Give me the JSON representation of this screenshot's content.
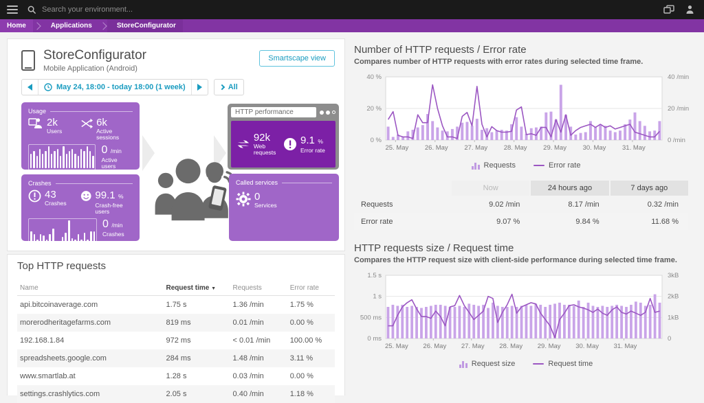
{
  "topbar": {
    "search_placeholder": "Search your environment..."
  },
  "breadcrumb": {
    "items": [
      "Home",
      "Applications",
      "StoreConfigurator"
    ]
  },
  "app": {
    "title": "StoreConfigurator",
    "subtitle": "Mobile Application (Android)",
    "smartscape_button": "Smartscape view",
    "timeframe": "May 24, 18:00 - today 18:00 (1 week)",
    "all_button": "All"
  },
  "infographic": {
    "usage": {
      "title": "Usage",
      "users_value": "2k",
      "users_label": "Users",
      "sessions_value": "6k",
      "sessions_label": "Active sessions",
      "rate_value": "0",
      "rate_unit": "/min",
      "rate_label": "Active users",
      "bars": [
        6,
        7,
        5,
        8,
        6,
        7,
        9,
        6,
        7,
        8,
        5,
        9,
        6,
        7,
        8,
        6,
        5,
        8,
        7,
        9,
        7,
        5
      ]
    },
    "crashes": {
      "title": "Crashes",
      "count_value": "43",
      "count_label": "Crashes",
      "free_value": "99.1",
      "free_unit": "%",
      "free_label": "Crash-free users",
      "rate_value": "0",
      "rate_unit": "/min",
      "rate_label": "Crashes",
      "bars": [
        4,
        3,
        1,
        3,
        2.5,
        1,
        3,
        5,
        0,
        0,
        2,
        3.5,
        8,
        1.5,
        1,
        3,
        1,
        3.5,
        1,
        4,
        4
      ]
    },
    "http_performance": {
      "window_title": "HTTP performance",
      "requests_value": "92k",
      "requests_label": "Web requests",
      "error_value": "9.1",
      "error_unit": "%",
      "error_label": "Error rate"
    },
    "called_services": {
      "title": "Called services",
      "value": "0",
      "label": "Services"
    }
  },
  "comparison": {
    "columns": [
      "Now",
      "24 hours ago",
      "7 days ago"
    ],
    "rows": [
      {
        "label": "Requests",
        "values": [
          "9.02 /min",
          "8.17 /min",
          "0.32 /min"
        ]
      },
      {
        "label": "Error rate",
        "values": [
          "9.07 %",
          "9.84 %",
          "11.68 %"
        ]
      }
    ]
  },
  "top_requests": {
    "title": "Top HTTP requests",
    "columns": [
      "Name",
      "Request time",
      "Requests",
      "Error rate"
    ],
    "sort_indicator": "▼",
    "rows": [
      [
        "api.bitcoinaverage.com",
        "1.75 s",
        "1.36 /min",
        "1.75 %"
      ],
      [
        "morerodheritagefarms.com",
        "819 ms",
        "0.01 /min",
        "0.00 %"
      ],
      [
        "192.168.1.84",
        "972 ms",
        "< 0.01 /min",
        "100.00 %"
      ],
      [
        "spreadsheets.google.com",
        "284 ms",
        "1.48 /min",
        "3.11 %"
      ],
      [
        "www.smartlab.at",
        "1.28 s",
        "0.03 /min",
        "0.00 %"
      ],
      [
        "settings.crashlytics.com",
        "2.05 s",
        "0.40 /min",
        "1.18 %"
      ]
    ]
  },
  "chart_data": [
    {
      "type": "bar",
      "title": "Number of HTTP requests / Error rate",
      "subtitle": "Compares number of HTTP requests with error rates during selected time frame.",
      "x_tick_labels": [
        "25. May",
        "26. May",
        "27. May",
        "28. May",
        "29. May",
        "30. May",
        "31. May"
      ],
      "left_axis": {
        "ticks": [
          "0 %",
          "20 %",
          "40 %"
        ],
        "max": 40,
        "label": "Error rate (%)"
      },
      "right_axis": {
        "ticks": [
          "0 /min",
          "20 /min",
          "40 /min"
        ],
        "max": 40,
        "label": "Requests (/min)"
      },
      "legend": [
        "Requests",
        "Error rate"
      ],
      "colors": {
        "bar": "#c9a4e8",
        "line": "#9b56c2"
      },
      "series": [
        {
          "name": "Requests",
          "type": "bar",
          "axis": "right_axis",
          "values": [
            8.5,
            2,
            3.5,
            2,
            5.5,
            6.5,
            8,
            9.5,
            16.5,
            12,
            8,
            6,
            5.5,
            7,
            8.5,
            11,
            11.5,
            9,
            13.5,
            6.5,
            7.5,
            5,
            6,
            6.5,
            6,
            10,
            14.5,
            8.5,
            4,
            7.5,
            8,
            8.5,
            17.5,
            18,
            13,
            35,
            16,
            8.5,
            3.5,
            4.5,
            5,
            12,
            8,
            10,
            9,
            6,
            5,
            6,
            10,
            13,
            17.5,
            12,
            9,
            5.5,
            6,
            12
          ]
        },
        {
          "name": "Error rate",
          "type": "line",
          "axis": "left_axis",
          "values": [
            13,
            18,
            3,
            2,
            2,
            1,
            16,
            11,
            11,
            35,
            20,
            9,
            2,
            2,
            1,
            15,
            17.5,
            9,
            34,
            10,
            2,
            8.5,
            6,
            5,
            5,
            5.5,
            19,
            21,
            3.5,
            4,
            3,
            8,
            8,
            2,
            13,
            5,
            16,
            3,
            6,
            8,
            9,
            10,
            8,
            10,
            8,
            9,
            7,
            8,
            9,
            10,
            5,
            4,
            3,
            2,
            2,
            5.5
          ]
        }
      ]
    },
    {
      "type": "bar",
      "title": "HTTP requests size / Request time",
      "subtitle": "Compares the HTTP request size with client-side performance during selected time frame.",
      "x_tick_labels": [
        "25. May",
        "26. May",
        "27. May",
        "28. May",
        "29. May",
        "30. May",
        "31. May"
      ],
      "left_axis": {
        "ticks": [
          "0 ms",
          "500 ms",
          "1 s",
          "1.5 s"
        ],
        "max": 1.5,
        "label": "Request time"
      },
      "right_axis": {
        "ticks": [
          "0",
          "1kB",
          "2kB",
          "3kB"
        ],
        "max": 3,
        "label": "Request size"
      },
      "legend": [
        "Request size",
        "Request time"
      ],
      "colors": {
        "bar": "#c9a4e8",
        "line": "#9b56c2"
      },
      "series": [
        {
          "name": "Request size",
          "type": "bar",
          "axis": "right_axis",
          "values": [
            1.5,
            1.6,
            1.55,
            1.6,
            1.5,
            1.55,
            1.5,
            1.45,
            1.5,
            1.55,
            1.6,
            1.6,
            1.55,
            1.5,
            1.5,
            1.55,
            1.5,
            1.65,
            1.6,
            1.55,
            1.6,
            1.45,
            1.7,
            1.55,
            1.5,
            1.5,
            1.55,
            1.5,
            1.55,
            1.6,
            1.55,
            1.65,
            1.6,
            1.5,
            1.6,
            1.65,
            1.7,
            1.6,
            1.6,
            1.55,
            1.8,
            1.5,
            1.7,
            1.55,
            1.5,
            1.55,
            1.5,
            1.55,
            1.6,
            1.55,
            1.5,
            1.6,
            1.75,
            1.7,
            1.55,
            1.6,
            2.1,
            1.7
          ]
        },
        {
          "name": "Request time",
          "type": "line",
          "axis": "left_axis",
          "values": [
            0.3,
            0.3,
            0.55,
            0.75,
            0.85,
            0.92,
            0.7,
            0.52,
            0.52,
            0.48,
            0.65,
            0.52,
            0.3,
            0.75,
            0.78,
            1.02,
            0.78,
            0.62,
            0.45,
            0.55,
            0.65,
            1.0,
            0.95,
            0.38,
            0.62,
            0.8,
            1.05,
            0.6,
            0.75,
            0.8,
            0.85,
            0.82,
            0.6,
            0.45,
            0.3,
            0.02,
            0.45,
            0.6,
            0.78,
            0.8,
            0.75,
            0.72,
            0.68,
            0.62,
            0.7,
            0.6,
            0.55,
            0.68,
            0.75,
            0.62,
            0.58,
            0.65,
            0.6,
            0.55,
            0.62,
            0.95,
            0.62,
            0.65
          ]
        }
      ]
    }
  ]
}
